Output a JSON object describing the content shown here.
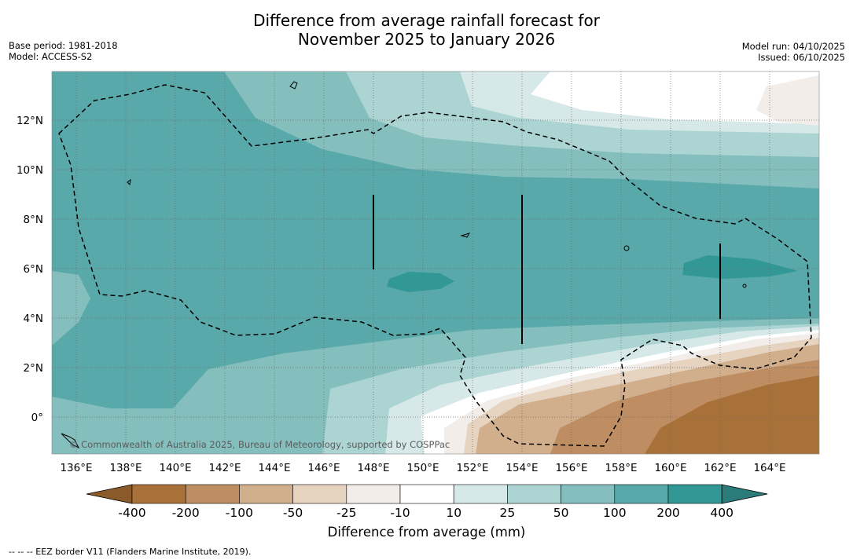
{
  "title_line1": "Difference from average rainfall forecast for",
  "title_line2": "November 2025 to January 2026",
  "meta": {
    "base_period": "Base period: 1981-2018",
    "model": "Model: ACCESS-S2",
    "model_run": "Model run: 04/10/2025",
    "issued": "Issued: 06/10/2025"
  },
  "map": {
    "lat_labels": [
      "12°N",
      "10°N",
      "8°N",
      "6°N",
      "4°N",
      "2°N",
      "0°"
    ],
    "lon_labels": [
      "136°E",
      "138°E",
      "140°E",
      "142°E",
      "144°E",
      "146°E",
      "148°E",
      "150°E",
      "152°E",
      "154°E",
      "156°E",
      "158°E",
      "160°E",
      "162°E",
      "164°E"
    ],
    "copyright": "© Commonwealth of Australia 2025, Bureau of Meteorology, supported by COSPPac"
  },
  "colorbar": {
    "title": "Difference from average (mm)",
    "tick_labels": [
      "-400",
      "-200",
      "-100",
      "-50",
      "-25",
      "-10",
      "10",
      "25",
      "50",
      "100",
      "200",
      "400"
    ],
    "colors": [
      "#8b5a2b",
      "#a9713a",
      "#be8e62",
      "#d2af8c",
      "#e6d4c1",
      "#f2ede8",
      "#ffffff",
      "#d6e9e8",
      "#acd4d2",
      "#84bfbe",
      "#5aa9aa",
      "#329896",
      "#2b7b7b"
    ]
  },
  "footnote": "--  --  -- EEZ border V11 (Flanders Marine Institute, 2019)."
}
